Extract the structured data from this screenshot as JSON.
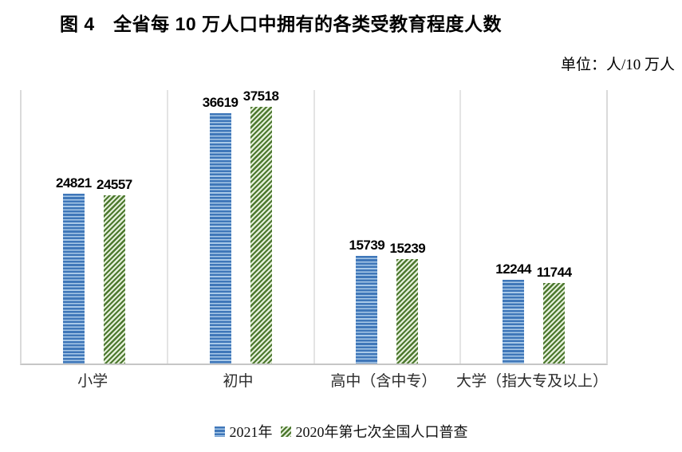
{
  "title": "图 4　全省每 10 万人口中拥有的各类受教育程度人数",
  "unit_label": "单位：人/10 万人",
  "legend": {
    "items": [
      {
        "label": "2021年",
        "swatch": "blue-horizontal-stripes-swatch"
      },
      {
        "label": "2020年第七次全国人口普查",
        "swatch": "green-diagonal-stripes-swatch"
      }
    ]
  },
  "colors": {
    "series1_dark": "#3f77b9",
    "series1_light": "#a9c9e8",
    "series2_dark": "#4c782e",
    "series2_light": "#e4efda",
    "plot_border": "#dadada",
    "axis_line": "#c6c6c6",
    "text": "#000000"
  },
  "chart_data": {
    "type": "bar",
    "title": "图 4　全省每 10 万人口中拥有的各类受教育程度人数",
    "unit": "人/10 万人",
    "categories": [
      "小学",
      "初中",
      "高中（含中专）",
      "大学（指大专及以上）"
    ],
    "series": [
      {
        "name": "2021年",
        "pattern": "horizontal-stripes",
        "color_dark": "#3f77b9",
        "color_light": "#a9c9e8",
        "values": [
          24821,
          36619,
          15739,
          12244
        ]
      },
      {
        "name": "2020年第七次全国人口普查",
        "pattern": "diagonal-stripes",
        "color_dark": "#4c782e",
        "color_light": "#e4efda",
        "values": [
          24557,
          37518,
          15239,
          11744
        ]
      }
    ],
    "data_labels": true,
    "ylim": [
      0,
      40000
    ],
    "yaxis_visible": false,
    "grid": "vertical-category-separators",
    "legend_position": "bottom"
  }
}
